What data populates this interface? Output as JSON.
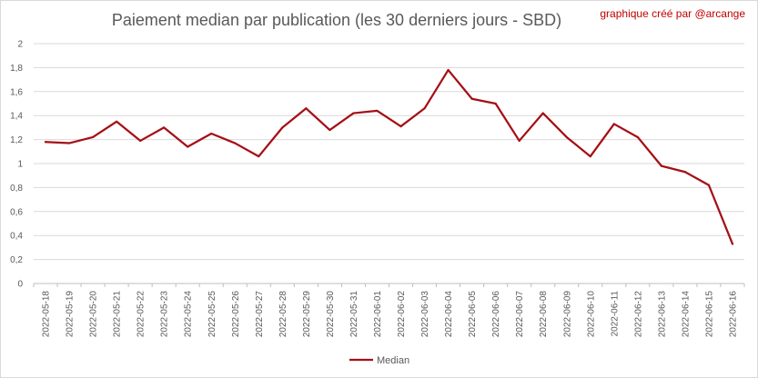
{
  "header": {
    "credit": "graphique créé par @arcange"
  },
  "chart_data": {
    "type": "line",
    "title": "Paiement median par publication (les 30 derniers jours - SBD)",
    "xlabel": "",
    "ylabel": "",
    "ylim": [
      0,
      2
    ],
    "yticks": [
      "0",
      "0,2",
      "0,4",
      "0,6",
      "0,8",
      "1",
      "1,2",
      "1,4",
      "1,6",
      "1,8",
      "2"
    ],
    "grid": true,
    "legend_position": "bottom",
    "categories": [
      "2022-05-18",
      "2022-05-19",
      "2022-05-20",
      "2022-05-21",
      "2022-05-22",
      "2022-05-23",
      "2022-05-24",
      "2022-05-25",
      "2022-05-26",
      "2022-05-27",
      "2022-05-28",
      "2022-05-29",
      "2022-05-30",
      "2022-05-31",
      "2022-06-01",
      "2022-06-02",
      "2022-06-03",
      "2022-06-04",
      "2022-06-05",
      "2022-06-06",
      "2022-06-07",
      "2022-06-08",
      "2022-06-09",
      "2022-06-10",
      "2022-06-11",
      "2022-06-12",
      "2022-06-13",
      "2022-06-14",
      "2022-06-15",
      "2022-06-16"
    ],
    "series": [
      {
        "name": "Median",
        "color": "#a50f15",
        "values": [
          1.18,
          1.17,
          1.22,
          1.35,
          1.19,
          1.3,
          1.14,
          1.25,
          1.17,
          1.06,
          1.3,
          1.46,
          1.28,
          1.42,
          1.44,
          1.31,
          1.46,
          1.78,
          1.54,
          1.5,
          1.19,
          1.42,
          1.22,
          1.06,
          1.33,
          1.22,
          0.98,
          0.93,
          0.82,
          0.33
        ]
      }
    ]
  }
}
